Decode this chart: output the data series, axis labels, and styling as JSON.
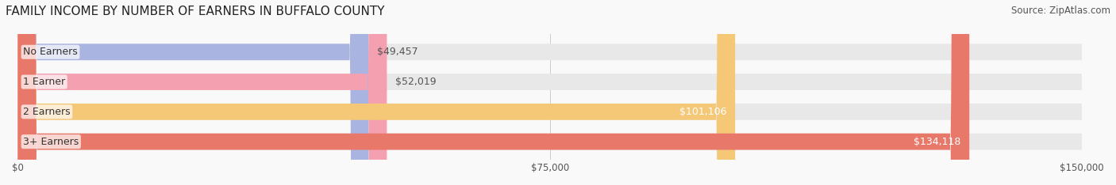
{
  "title": "FAMILY INCOME BY NUMBER OF EARNERS IN BUFFALO COUNTY",
  "source": "Source: ZipAtlas.com",
  "categories": [
    "No Earners",
    "1 Earner",
    "2 Earners",
    "3+ Earners"
  ],
  "values": [
    49457,
    52019,
    101106,
    134118
  ],
  "labels": [
    "$49,457",
    "$52,019",
    "$101,106",
    "$134,118"
  ],
  "bar_colors": [
    "#aab4e0",
    "#f4a0b0",
    "#f5c878",
    "#e8796a"
  ],
  "bar_bg_color": "#f0f0f0",
  "label_colors": [
    "#555555",
    "#555555",
    "#ffffff",
    "#ffffff"
  ],
  "xlim": [
    0,
    150000
  ],
  "xticks": [
    0,
    75000,
    150000
  ],
  "xticklabels": [
    "$0",
    "$75,000",
    "$150,000"
  ],
  "title_fontsize": 11,
  "source_fontsize": 8.5,
  "bar_label_fontsize": 9,
  "category_fontsize": 9,
  "background_color": "#f9f9f9",
  "bar_bg_rounding": 0.4,
  "bar_height": 0.55
}
